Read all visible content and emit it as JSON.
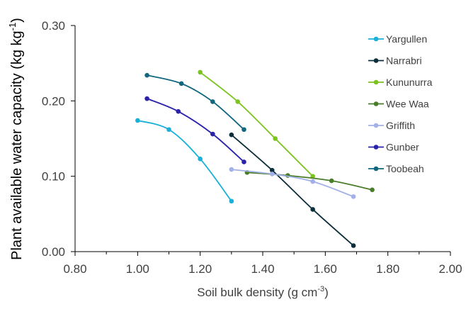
{
  "chart_data": {
    "type": "line",
    "title": "",
    "xlabel": "Soil bulk density (g cm",
    "xlabel_sup": "-3",
    "xlabel_end": ")",
    "ylabel": "Plant available water capacity (kg kg",
    "ylabel_sup": "-1",
    "ylabel_end": ")",
    "xlim": [
      0.8,
      2.0
    ],
    "ylim": [
      0.0,
      0.3
    ],
    "xticks": [
      "0.80",
      "1.00",
      "1.20",
      "1.40",
      "1.60",
      "1.80",
      "2.00"
    ],
    "yticks": [
      "0.00",
      "0.10",
      "0.20",
      "0.30"
    ],
    "grid": false,
    "legend_position": "top-right",
    "series": [
      {
        "name": "Yargullen",
        "color": "#1ab0d8",
        "x": [
          1.0,
          1.1,
          1.2,
          1.3
        ],
        "y": [
          0.174,
          0.162,
          0.123,
          0.067
        ]
      },
      {
        "name": "Narrabri",
        "color": "#0b2e3a",
        "x": [
          1.3,
          1.43,
          1.56,
          1.69
        ],
        "y": [
          0.155,
          0.108,
          0.056,
          0.008
        ]
      },
      {
        "name": "Kununurra",
        "color": "#7dc31f",
        "x": [
          1.2,
          1.32,
          1.44,
          1.56
        ],
        "y": [
          0.238,
          0.199,
          0.15,
          0.1
        ]
      },
      {
        "name": "Wee Waa",
        "color": "#4a7d2a",
        "x": [
          1.35,
          1.48,
          1.62,
          1.75
        ],
        "y": [
          0.105,
          0.101,
          0.094,
          0.082
        ]
      },
      {
        "name": "Griffith",
        "color": "#a3b1e8",
        "x": [
          1.3,
          1.43,
          1.56,
          1.69
        ],
        "y": [
          0.109,
          0.103,
          0.093,
          0.073
        ]
      },
      {
        "name": "Gunber",
        "color": "#2a22a8",
        "x": [
          1.03,
          1.13,
          1.24,
          1.34
        ],
        "y": [
          0.203,
          0.186,
          0.156,
          0.119
        ]
      },
      {
        "name": "Toobeah",
        "color": "#11677e",
        "x": [
          1.03,
          1.14,
          1.24,
          1.34
        ],
        "y": [
          0.234,
          0.223,
          0.199,
          0.162
        ]
      }
    ]
  }
}
